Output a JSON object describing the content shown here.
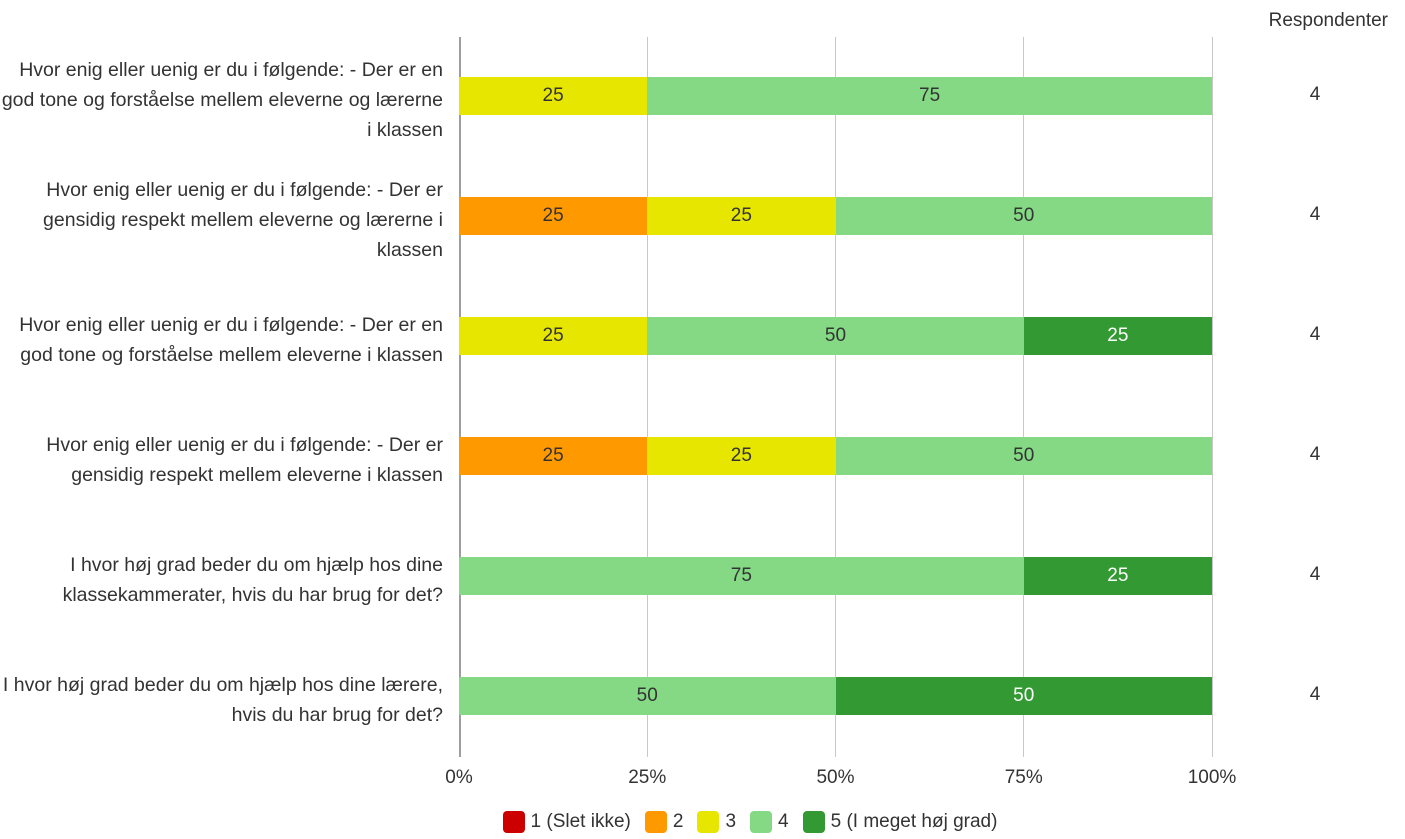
{
  "chart_data": {
    "type": "stacked-bar-horizontal",
    "categories": [
      "Hvor enig eller uenig er du i følgende: - Der er en god tone og forståelse mellem eleverne og lærerne i klassen",
      "Hvor enig eller uenig er du i følgende: - Der er gensidig respekt mellem eleverne og lærerne i klassen",
      "Hvor enig eller uenig er du i følgende: - Der er en god tone og forståelse mellem eleverne i klassen",
      "Hvor enig eller uenig er du i følgende: - Der er gensidig respekt mellem eleverne i klassen",
      "I hvor høj grad beder du om hjælp hos dine klassekammerater, hvis du har brug for det?",
      "I hvor høj grad beder du om hjælp hos dine lærere, hvis du har brug for det?"
    ],
    "series": [
      {
        "name": "1 (Slet ikke)",
        "color": "#cc0000",
        "values": [
          null,
          null,
          null,
          null,
          null,
          null
        ]
      },
      {
        "name": "2",
        "color": "#ff9900",
        "values": [
          null,
          25,
          null,
          25,
          null,
          null
        ]
      },
      {
        "name": "3",
        "color": "#e6e600",
        "values": [
          25,
          25,
          25,
          25,
          null,
          null
        ]
      },
      {
        "name": "4",
        "color": "#85d985",
        "values": [
          75,
          50,
          50,
          50,
          75,
          50
        ]
      },
      {
        "name": "5 (I meget høj grad)",
        "color": "#339933",
        "values": [
          null,
          null,
          25,
          null,
          25,
          50
        ]
      }
    ],
    "xlim": [
      0,
      100
    ],
    "xticks": [
      {
        "value": 0,
        "label": "0%"
      },
      {
        "value": 25,
        "label": "25%"
      },
      {
        "value": 50,
        "label": "50%"
      },
      {
        "value": 75,
        "label": "75%"
      },
      {
        "value": 100,
        "label": "100%"
      }
    ],
    "grid": true,
    "legend": "bottom",
    "respondents": {
      "title": "Respondenter",
      "values": [
        4,
        4,
        4,
        4,
        4,
        4
      ]
    }
  }
}
